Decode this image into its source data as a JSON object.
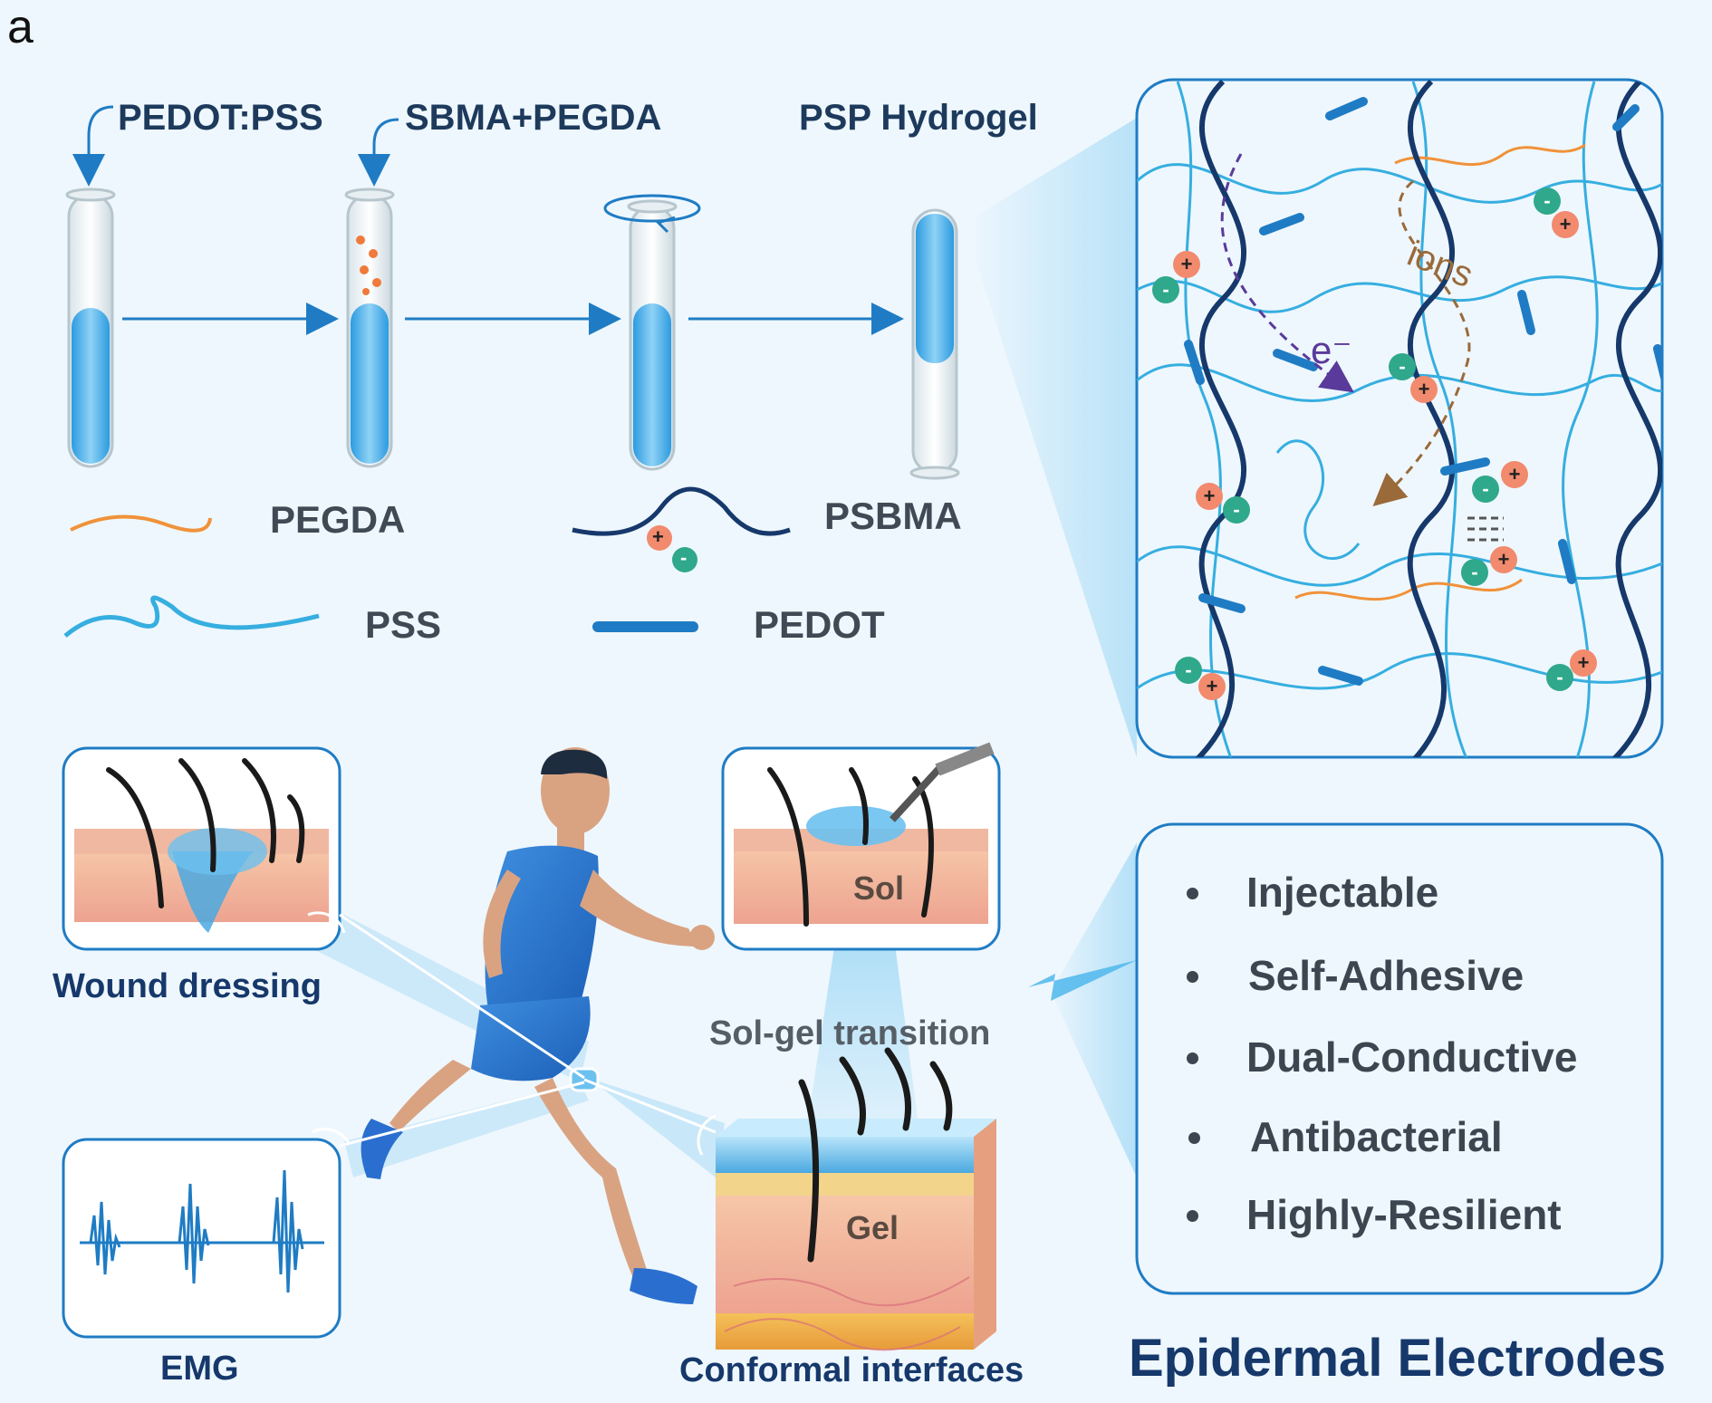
{
  "panel_label": "a",
  "top": {
    "pedot_pss": "PEDOT:PSS",
    "sbma_pegda": "SBMA+PEGDA",
    "psp_hydrogel": "PSP Hydrogel"
  },
  "legend": {
    "pegda": "PEGDA",
    "psbma": "PSBMA",
    "pss": "PSS",
    "pedot": "PEDOT"
  },
  "network": {
    "ions": "ions",
    "electron": "e⁻",
    "plus": "+",
    "minus": "-"
  },
  "applications": {
    "wound_dressing": "Wound dressing",
    "emg": "EMG",
    "sol": "Sol",
    "gel": "Gel",
    "sol_gel_transition": "Sol-gel transition",
    "conformal_interfaces": "Conformal interfaces"
  },
  "features": [
    "Injectable",
    "Self-Adhesive",
    "Dual-Conductive",
    "Antibacterial",
    "Highly-Resilient"
  ],
  "title": "Epidermal Electrodes",
  "colors": {
    "navy": "#16386b",
    "blue": "#1f7cc4",
    "light_blue": "#36aee0",
    "orange": "#f0923a",
    "cation": "#f28a6e",
    "anion": "#2fa88b",
    "brown": "#9a6a3a",
    "purple": "#5a3a9a"
  }
}
